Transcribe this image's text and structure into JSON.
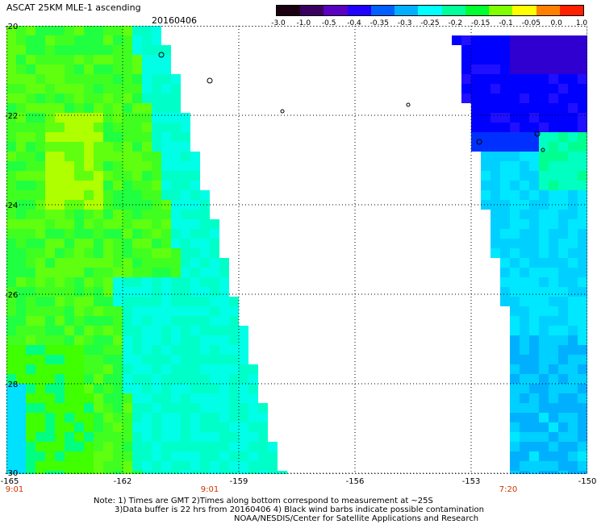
{
  "header": {
    "title": "ASCAT 25KM MLE-1 ascending",
    "date": "20160406"
  },
  "colorbar": {
    "ticks": [
      "-3.0",
      "-1.0",
      "-0.5",
      "-0.4",
      "-0.35",
      "-0.3",
      "-0.25",
      "-0.2",
      "-0.15",
      "-0.1",
      "-0.05",
      "0.0",
      "1.0"
    ],
    "colors": [
      "#1a0010",
      "#3a0060",
      "#5a00c0",
      "#2000ff",
      "#0060ff",
      "#00b0ff",
      "#00ffff",
      "#00ff9a",
      "#00ff30",
      "#80ff00",
      "#ffff00",
      "#ff8000",
      "#ff2000"
    ]
  },
  "axes": {
    "lat_ticks": [
      "-20",
      "-22",
      "-24",
      "-26",
      "-28",
      "-30"
    ],
    "lon_ticks": [
      "-165",
      "-162",
      "-159",
      "-156",
      "-153",
      "-150"
    ]
  },
  "time_labels": [
    "9:01",
    "9:01",
    "7:20"
  ],
  "notes": [
    "Note: 1) Times are GMT 2)Times along bottom correspond to measurement at ~25S",
    "3)Data buffer is 22 hrs from 20160406 4) Black wind barbs indicate possible contamination",
    "NOAA/NESDIS/Center for Satellite Applications and Research"
  ]
}
